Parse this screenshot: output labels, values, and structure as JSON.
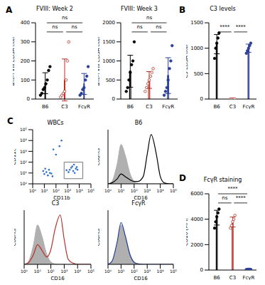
{
  "chart_data": [
    {
      "panel": "A",
      "type": "bar",
      "title": "FVIII: Week 2",
      "ylabel": "anti-FVIII ELISA titer",
      "categories": [
        "B6",
        "C3",
        "FcγR"
      ],
      "values": [
        83,
        100,
        79
      ],
      "errors": [
        55,
        110,
        55
      ],
      "points": [
        [
          20,
          30,
          50,
          60,
          80,
          100,
          150,
          170
        ],
        [
          10,
          20,
          30,
          40,
          100,
          200,
          300
        ],
        [
          20,
          30,
          50,
          60,
          100,
          120,
          170
        ]
      ],
      "colors": [
        "#000000",
        "#b5332a",
        "#2a3f97"
      ],
      "ylim": [
        0,
        400
      ],
      "yticks": [
        0,
        100,
        200,
        300,
        400
      ],
      "grid": false,
      "significance": [
        {
          "pair": [
            "B6",
            "C3"
          ],
          "label": "ns"
        },
        {
          "pair": [
            "C3",
            "FcγR"
          ],
          "label": "ns"
        },
        {
          "pair": [
            "B6",
            "FcγR"
          ],
          "label": "ns"
        }
      ]
    },
    {
      "type": "bar",
      "title": "FVIII: Week 3",
      "ylabel": "anti-FVIII ELISA titer",
      "categories": [
        "B6",
        "C3",
        "FcγR"
      ],
      "values": [
        730,
        500,
        614
      ],
      "errors": [
        420,
        220,
        470
      ],
      "points": [
        [
          200,
          300,
          500,
          700,
          900,
          1000,
          1500
        ],
        [
          200,
          300,
          400,
          500,
          600,
          700,
          800
        ],
        [
          100,
          200,
          300,
          500,
          800,
          1000,
          1400
        ]
      ],
      "colors": [
        "#000000",
        "#b5332a",
        "#2a3f97"
      ],
      "ylim": [
        0,
        2000
      ],
      "yticks": [
        0,
        500,
        1000,
        1500,
        2000
      ],
      "grid": false,
      "significance": [
        {
          "pair": [
            "B6",
            "C3"
          ],
          "label": "ns"
        },
        {
          "pair": [
            "C3",
            "FcγR"
          ],
          "label": "ns"
        },
        {
          "pair": [
            "B6",
            "FcγR"
          ],
          "label": "ns"
        }
      ]
    },
    {
      "panel": "B",
      "type": "bar",
      "title": "C3 levels",
      "ylabel": "C3 ELISA titer",
      "categories": [
        "B6",
        "C3",
        "FcγR"
      ],
      "values": [
        1080,
        0,
        1000
      ],
      "errors": [
        190,
        0,
        80
      ],
      "points": [
        [
          800,
          1000,
          1100,
          1200,
          1300
        ],
        [
          0,
          0,
          0,
          0,
          0
        ],
        [
          900,
          950,
          1000,
          1050,
          1100
        ]
      ],
      "colors": [
        "#000000",
        "#b5332a",
        "#2a3f97"
      ],
      "ylim": [
        0,
        1500
      ],
      "yticks": [
        0,
        500,
        1000,
        1500
      ],
      "grid": false,
      "significance": [
        {
          "pair": [
            "B6",
            "C3"
          ],
          "label": "****"
        },
        {
          "pair": [
            "C3",
            "FcγR"
          ],
          "label": "****"
        }
      ]
    },
    {
      "panel": "C",
      "type": "scatter",
      "title": "WBCs",
      "xlabel": "CD11b",
      "ylabel": "CD11c",
      "log": true,
      "x": [
        10,
        15,
        20,
        30,
        8,
        25,
        40,
        12,
        50,
        1500,
        2000,
        3000,
        5000,
        2500,
        4000,
        7000,
        1200,
        3500,
        800,
        6000,
        200,
        100,
        60,
        300
      ],
      "values": [
        8,
        12,
        6,
        10,
        15,
        20,
        9,
        25,
        5,
        20,
        30,
        15,
        25,
        40,
        10,
        20,
        12,
        60,
        18,
        35,
        3000,
        500,
        1500,
        10000
      ],
      "color": "#2f6fd0",
      "xlim": [
        1,
        100000
      ],
      "ylim": [
        1,
        100000
      ],
      "xticks": [
        {
          "value": 1,
          "label": "10⁰"
        },
        {
          "value": 10,
          "label": "10¹"
        },
        {
          "value": 100,
          "label": "10²"
        },
        {
          "value": 1000,
          "label": "10³"
        },
        {
          "value": 10000,
          "label": "10⁴"
        },
        {
          "value": 100000,
          "label": "10⁵"
        }
      ],
      "yticks": [
        {
          "value": 1,
          "label": "10⁰"
        },
        {
          "value": 10,
          "label": "10¹"
        },
        {
          "value": 100,
          "label": "10²"
        },
        {
          "value": 1000,
          "label": "10³"
        },
        {
          "value": 10000,
          "label": "10⁴"
        },
        {
          "value": 100000,
          "label": "10⁵"
        }
      ],
      "gate": {
        "x": [
          500,
          20000
        ],
        "y": [
          3,
          100
        ]
      },
      "grid": false
    },
    {
      "type": "line",
      "title": "B6",
      "xlabel": "CD16",
      "ylabel": "Counts",
      "log": "x",
      "x": [
        1,
        2,
        5,
        10,
        20,
        50,
        100,
        200,
        500,
        1000,
        2000,
        5000,
        10000,
        20000,
        50000,
        100000
      ],
      "series": [
        {
          "type": "area",
          "color": "#b0b0b0",
          "values": [
            0,
            5,
            40,
            80,
            60,
            20,
            5,
            1,
            0,
            0,
            0,
            0,
            0,
            0,
            0,
            0
          ]
        },
        {
          "type": "line",
          "color": "#000000",
          "values": [
            0,
            2,
            10,
            20,
            15,
            8,
            5,
            5,
            15,
            60,
            100,
            60,
            15,
            2,
            0,
            0
          ]
        }
      ],
      "xlim": [
        1,
        100000
      ],
      "xticks": [
        {
          "value": 1,
          "label": "10⁰"
        },
        {
          "value": 10,
          "label": "10¹"
        },
        {
          "value": 100,
          "label": "10²"
        },
        {
          "value": 1000,
          "label": "10³"
        },
        {
          "value": 10000,
          "label": "10⁴"
        },
        {
          "value": 100000,
          "label": "10⁵"
        }
      ],
      "ylim": [
        0,
        110
      ],
      "yticks": [
        0,
        50,
        100
      ],
      "tick_labels": "x",
      "grid": false
    },
    {
      "type": "line",
      "title": "C3",
      "xlabel": "CD16",
      "ylabel": "Counts",
      "log": "x",
      "x": [
        1,
        2,
        5,
        10,
        20,
        50,
        100,
        200,
        500,
        1000,
        2000,
        5000,
        10000,
        20000,
        50000,
        100000
      ],
      "series": [
        {
          "type": "area",
          "color": "#b0b0b0",
          "values": [
            0,
            5,
            40,
            80,
            60,
            20,
            5,
            1,
            0,
            0,
            0,
            0,
            0,
            0,
            0,
            0
          ]
        },
        {
          "type": "line",
          "color": "#b5332a",
          "values": [
            0,
            3,
            20,
            40,
            30,
            15,
            30,
            70,
            100,
            50,
            10,
            2,
            0,
            0,
            0,
            0
          ]
        }
      ],
      "xlim": [
        1,
        100000
      ],
      "xticks": [
        {
          "value": 1,
          "label": "10⁰"
        },
        {
          "value": 10,
          "label": "10¹"
        },
        {
          "value": 100,
          "label": "10²"
        },
        {
          "value": 1000,
          "label": "10³"
        },
        {
          "value": 10000,
          "label": "10⁴"
        },
        {
          "value": 100000,
          "label": "10⁵"
        }
      ],
      "ylim": [
        0,
        110
      ],
      "yticks": [
        0,
        50,
        100
      ],
      "tick_labels": "x",
      "grid": false
    },
    {
      "type": "line",
      "title": "FcγR",
      "xlabel": "CD16",
      "ylabel": "Counts",
      "log": "x",
      "x": [
        1,
        2,
        5,
        10,
        20,
        50,
        100,
        200,
        500,
        1000,
        2000,
        5000,
        10000,
        20000,
        50000,
        100000
      ],
      "series": [
        {
          "type": "area",
          "color": "#b0b0b0",
          "values": [
            0,
            5,
            40,
            80,
            60,
            20,
            5,
            1,
            0,
            0,
            0,
            0,
            0,
            0,
            0,
            0
          ]
        },
        {
          "type": "line",
          "color": "#2a3f97",
          "values": [
            0,
            6,
            45,
            85,
            60,
            18,
            4,
            1,
            0,
            0,
            0,
            0,
            0,
            0,
            0,
            0
          ]
        }
      ],
      "xlim": [
        1,
        100000
      ],
      "xticks": [
        {
          "value": 1,
          "label": "10⁰"
        },
        {
          "value": 10,
          "label": "10¹"
        },
        {
          "value": 100,
          "label": "10²"
        },
        {
          "value": 1000,
          "label": "10³"
        },
        {
          "value": 10000,
          "label": "10⁴"
        },
        {
          "value": 100000,
          "label": "10⁵"
        }
      ],
      "ylim": [
        0,
        110
      ],
      "yticks": [
        0,
        50,
        100
      ],
      "tick_labels": "x",
      "grid": false
    },
    {
      "panel": "D",
      "type": "bar",
      "title": "FcγR staining",
      "ylabel": "CD16 (MFI)",
      "categories": [
        "B6",
        "C3",
        "FcγR"
      ],
      "values": [
        4120,
        3780,
        50
      ],
      "errors": [
        580,
        390,
        7
      ],
      "points": [
        [
          3300,
          3800,
          4200,
          4500,
          4800
        ],
        [
          3300,
          3500,
          3800,
          4000,
          4300
        ],
        [
          40,
          50,
          60,
          50,
          50
        ]
      ],
      "colors": [
        "#000000",
        "#b5332a",
        "#2a3f97"
      ],
      "ylim": [
        0,
        6000
      ],
      "yticks": [
        0,
        2000,
        4000,
        6000
      ],
      "grid": false,
      "significance": [
        {
          "pair": [
            "B6",
            "C3"
          ],
          "label": "ns"
        },
        {
          "pair": [
            "C3",
            "FcγR"
          ],
          "label": "****"
        },
        {
          "pair": [
            "B6",
            "FcγR"
          ],
          "label": "****"
        }
      ]
    }
  ]
}
